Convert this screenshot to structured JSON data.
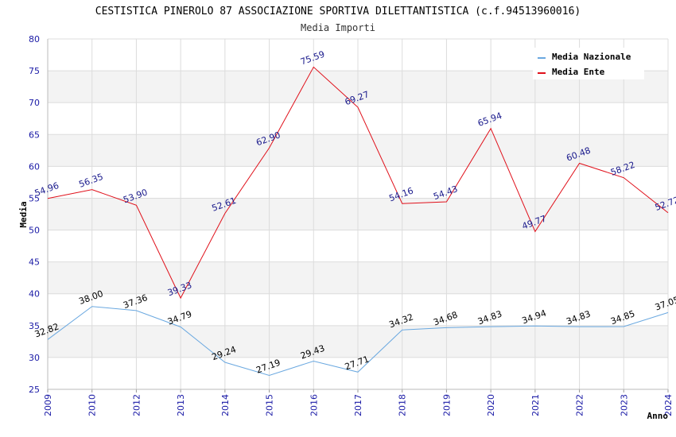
{
  "chart_data": {
    "type": "line",
    "title": "CESTISTICA PINEROLO 87 ASSOCIAZIONE SPORTIVA DILETTANTISTICA (c.f.94513960016)",
    "subtitle": "Media Importi",
    "xlabel": "Anno",
    "ylabel": "Media",
    "ylim": [
      25,
      80
    ],
    "yticks": [
      "25",
      "30",
      "35",
      "40",
      "45",
      "50",
      "55",
      "60",
      "65",
      "70",
      "75",
      "80"
    ],
    "x": [
      "2009",
      "2010",
      "2012",
      "2013",
      "2014",
      "2015",
      "2016",
      "2017",
      "2018",
      "2019",
      "2020",
      "2021",
      "2022",
      "2023",
      "2024"
    ],
    "grid": true,
    "legend_position": "top-right",
    "series": [
      {
        "name": "Media Nazionale",
        "color": "#6aa8e0",
        "label_color": "#000000",
        "values": [
          32.82,
          38.0,
          37.36,
          34.79,
          29.24,
          27.19,
          29.43,
          27.71,
          34.32,
          34.68,
          34.83,
          34.94,
          34.83,
          34.85,
          37.05
        ],
        "labels": [
          "32.82",
          "38.00",
          "37.36",
          "34.79",
          "29.24",
          "27.19",
          "29.43",
          "27.71",
          "34.32",
          "34.68",
          "34.83",
          "34.94",
          "34.83",
          "34.85",
          "37.05"
        ]
      },
      {
        "name": "Media Ente",
        "color": "#e0101a",
        "label_color": "#1a1a8c",
        "values": [
          54.96,
          56.35,
          53.9,
          39.33,
          52.61,
          62.9,
          75.59,
          69.27,
          54.16,
          54.43,
          65.94,
          49.77,
          60.48,
          58.22,
          52.72
        ],
        "labels": [
          "54.96",
          "56.35",
          "53.90",
          "39.33",
          "52.61",
          "62.90",
          "75.59",
          "69.27",
          "54.16",
          "54.43",
          "65.94",
          "49.77",
          "60.48",
          "58.22",
          "52.72"
        ]
      }
    ]
  }
}
